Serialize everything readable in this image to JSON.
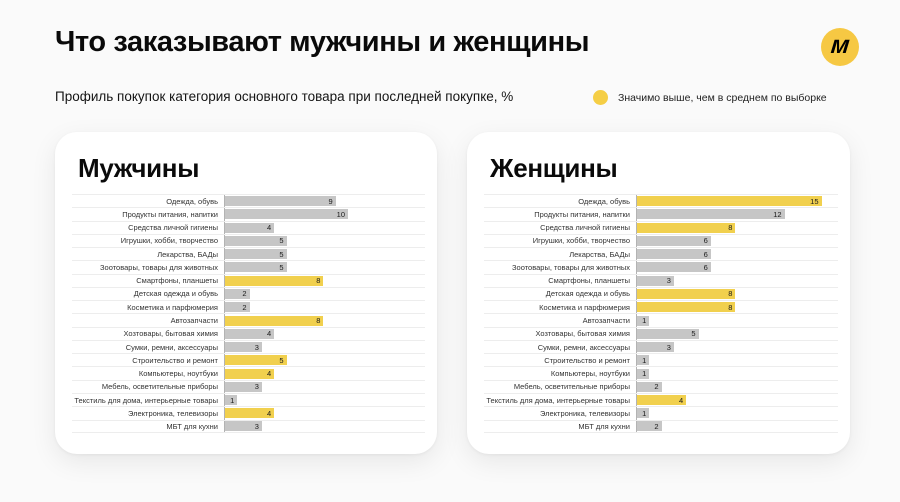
{
  "header": {
    "title": "Что заказывают мужчины и женщины",
    "subtitle": "Профиль покупок категория основного товара при последней покупке, %"
  },
  "legend": {
    "label": "Значимо выше, чем в среднем по выборке",
    "dot_color": "#f5ce45"
  },
  "logo": {
    "glyph": "м",
    "bg_color": "#f6c843"
  },
  "chart_data": {
    "type": "bar",
    "orientation": "horizontal",
    "unit": "%",
    "title": "Что заказывают мужчины и женщины",
    "subtitle": "Профиль покупок категория основного товара при последней покупке, %",
    "xlim": [
      0,
      16
    ],
    "grid": "row-separators",
    "highlight_meaning": "Значимо выше, чем в среднем по выборке",
    "colors": {
      "bar": "#c6c6c6",
      "highlight": "#f1d04e"
    },
    "categories": [
      "Одежда, обувь",
      "Продукты питания, напитки",
      "Средства личной гигиены",
      "Игрушки, хобби, творчество",
      "Лекарства, БАДы",
      "Зоотовары, товары для животных",
      "Смартфоны, планшеты",
      "Детская одежда и обувь",
      "Косметика и парфюмерия",
      "Автозапчасти",
      "Хозтовары, бытовая химия",
      "Сумки, ремни, аксессуары",
      "Строительство и ремонт",
      "Компьютеры, ноутбуки",
      "Мебель, осветительные приборы",
      "Текстиль для дома, интерьерные товары",
      "Электроника, телевизоры",
      "МБТ для кухни"
    ],
    "series": [
      {
        "name": "Мужчины",
        "values": [
          9,
          10,
          4,
          5,
          5,
          5,
          8,
          2,
          2,
          8,
          4,
          3,
          5,
          4,
          3,
          1,
          4,
          3
        ],
        "highlighted": [
          false,
          false,
          false,
          false,
          false,
          false,
          true,
          false,
          false,
          true,
          false,
          false,
          true,
          true,
          false,
          false,
          true,
          false
        ]
      },
      {
        "name": "Женщины",
        "values": [
          15,
          12,
          8,
          6,
          6,
          6,
          3,
          8,
          8,
          1,
          5,
          3,
          1,
          1,
          2,
          4,
          1,
          2
        ],
        "highlighted": [
          true,
          false,
          true,
          false,
          false,
          false,
          false,
          true,
          true,
          false,
          false,
          false,
          false,
          false,
          false,
          true,
          false,
          false
        ]
      }
    ]
  }
}
